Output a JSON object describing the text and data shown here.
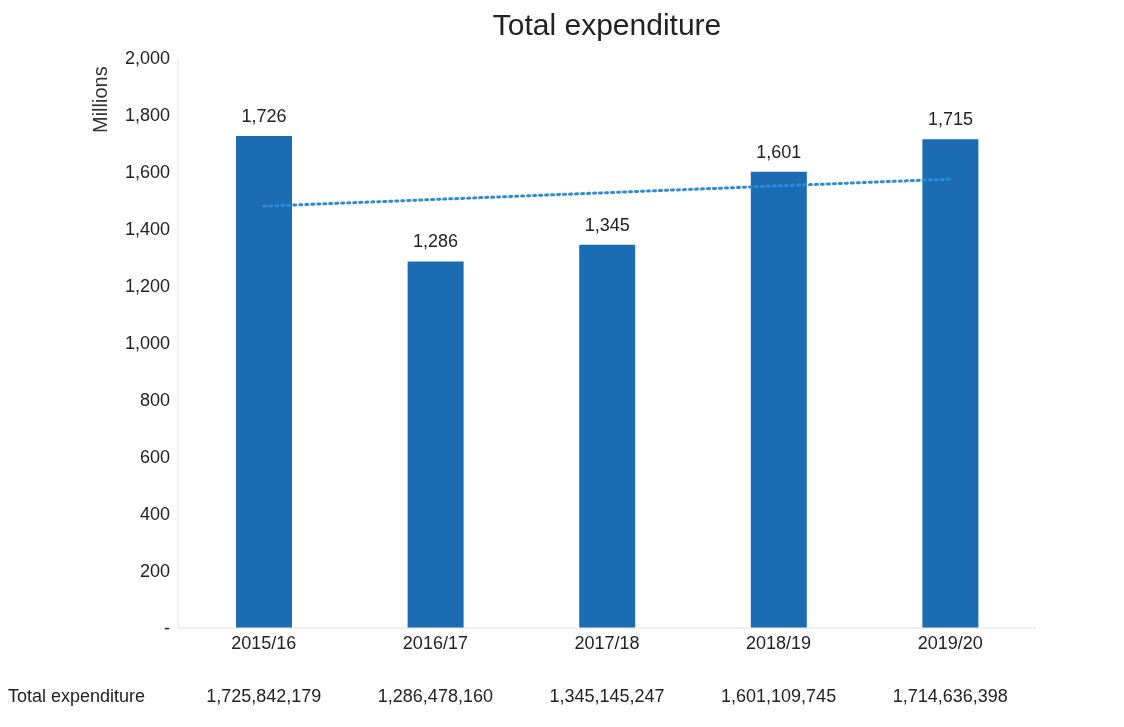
{
  "chart_data": {
    "type": "bar",
    "title": "Total expenditure",
    "ylabel": "Millions",
    "categories": [
      "2015/16",
      "2016/17",
      "2017/18",
      "2018/19",
      "2019/20"
    ],
    "series": [
      {
        "color": "#1c6cb4",
        "values": [
          1726,
          1286,
          1345,
          1601,
          1715
        ],
        "value_labels": [
          "1,726",
          "1,286",
          "1,345",
          "1,601",
          "1,715"
        ]
      },
      {
        "type": "line",
        "color": "#2e8ad8",
        "line_style": "dotted",
        "marker": "none",
        "x": [
          "2015/16",
          "2019/20"
        ],
        "values": [
          1480,
          1575
        ]
      }
    ],
    "ylim": [
      0,
      2000
    ],
    "yticks": [
      {
        "value": 0,
        "label": "-"
      },
      200,
      400,
      600,
      800,
      {
        "value": 1000,
        "label": "1,000"
      },
      {
        "value": 1200,
        "label": "1,200"
      },
      {
        "value": 1400,
        "label": "1,400"
      },
      {
        "value": 1600,
        "label": "1,600"
      },
      {
        "value": 1800,
        "label": "1,800"
      },
      {
        "value": 2000,
        "label": "2,000"
      }
    ],
    "grid": false,
    "legend": false,
    "annotations": [
      "Total expenditure",
      "1,725,842,179",
      "1,286,478,160",
      "1,345,145,247",
      "1,601,109,745",
      "1,714,636,398"
    ]
  }
}
